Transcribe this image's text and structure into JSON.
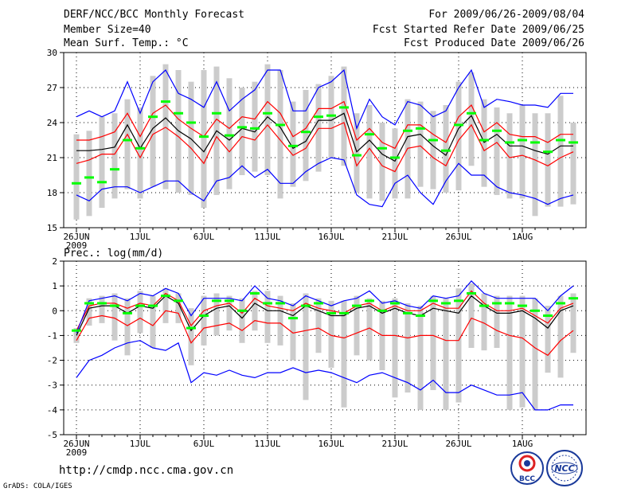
{
  "header": {
    "title": "DERF/NCC/BCC Monthly Forecast",
    "member_size": "Member Size=40",
    "variable": "Mean Surf. Temp.: °C",
    "period": "For 2009/06/26-2009/08/04",
    "started": "Fcst Started Refer Date 2009/06/25",
    "produced": "Fcst Produced Date 2009/06/26"
  },
  "panel2_label": "Prec.: log(mm/d)",
  "footer": {
    "url": "http://cmdp.ncc.cma.gov.cn",
    "credit": "GrADS: COLA/IGES"
  },
  "logos": {
    "bcc": "BCC",
    "ncc": "NCC"
  },
  "colors": {
    "bar": "#cccccc",
    "mean": "#00ff00",
    "median": "#000000",
    "quartile": "#ff0000",
    "extreme": "#0000ff"
  },
  "chart_data": [
    {
      "type": "box-range",
      "title": "Mean Surf. Temp.: °C",
      "x": [
        "06-26",
        "06-27",
        "06-28",
        "06-29",
        "06-30",
        "07-01",
        "07-02",
        "07-03",
        "07-04",
        "07-05",
        "07-06",
        "07-07",
        "07-08",
        "07-09",
        "07-10",
        "07-11",
        "07-12",
        "07-13",
        "07-14",
        "07-15",
        "07-16",
        "07-17",
        "07-18",
        "07-19",
        "07-20",
        "07-21",
        "07-22",
        "07-23",
        "07-24",
        "07-25",
        "07-26",
        "07-27",
        "07-28",
        "07-29",
        "07-30",
        "07-31",
        "08-01",
        "08-02",
        "08-03",
        "08-04"
      ],
      "xticks": [
        "26JUN",
        "1JUL",
        "6JUL",
        "11JUL",
        "16JUL",
        "21JUL",
        "26JUL",
        "1AUG"
      ],
      "xtick_sub": "2009",
      "ylim": [
        15,
        30
      ],
      "yticks": [
        15,
        18,
        21,
        24,
        27,
        30
      ],
      "bar_low": [
        15.7,
        16.0,
        16.7,
        17.5,
        18.3,
        17.5,
        18.5,
        18.3,
        18.0,
        17.8,
        16.7,
        17.8,
        18.3,
        19.5,
        19.8,
        19.5,
        17.5,
        18.5,
        19.0,
        19.8,
        21.0,
        20.3,
        18.0,
        17.5,
        17.3,
        17.5,
        17.5,
        18.5,
        18.3,
        18.0,
        18.2,
        20.3,
        18.5,
        17.8,
        17.5,
        17.5,
        16.0,
        16.8,
        16.8,
        17.0
      ],
      "bar_high": [
        23.0,
        23.3,
        24.5,
        24.8,
        26.0,
        25.3,
        28.0,
        29.0,
        28.5,
        27.5,
        28.5,
        28.8,
        27.8,
        27.0,
        27.5,
        29.0,
        28.5,
        25.8,
        26.8,
        27.3,
        28.0,
        28.8,
        24.8,
        25.5,
        24.0,
        23.5,
        26.0,
        25.8,
        25.0,
        25.5,
        27.5,
        28.3,
        26.0,
        25.3,
        24.8,
        25.5,
        24.8,
        24.8,
        26.3,
        24.0
      ],
      "series": [
        {
          "name": "ensemble mean",
          "style": "tick",
          "values": [
            18.8,
            19.3,
            18.9,
            20.0,
            22.5,
            21.8,
            24.5,
            25.8,
            24.8,
            24.0,
            22.8,
            24.8,
            22.9,
            23.6,
            23.5,
            24.8,
            23.8,
            22.0,
            23.2,
            24.5,
            24.6,
            25.3,
            21.2,
            23.0,
            21.8,
            21.0,
            23.3,
            23.5,
            22.5,
            21.6,
            23.8,
            24.8,
            22.5,
            23.3,
            22.3,
            22.5,
            22.3,
            21.5,
            22.5,
            22.3
          ]
        },
        {
          "name": "median",
          "style": "line",
          "values": [
            21.6,
            21.6,
            21.7,
            21.9,
            23.8,
            21.8,
            23.5,
            24.4,
            23.3,
            22.6,
            21.5,
            23.3,
            22.5,
            23.5,
            23.2,
            24.5,
            23.6,
            21.8,
            22.4,
            24.2,
            24.2,
            24.8,
            21.5,
            22.5,
            21.3,
            20.7,
            22.8,
            23.0,
            22.0,
            21.2,
            23.5,
            24.6,
            22.3,
            23.0,
            22.0,
            22.0,
            21.6,
            21.3,
            22.0,
            22.0
          ]
        },
        {
          "name": "upper quartile",
          "style": "line",
          "values": [
            22.5,
            22.5,
            22.8,
            23.2,
            24.8,
            22.8,
            24.8,
            25.5,
            24.3,
            23.5,
            22.8,
            24.3,
            23.5,
            24.5,
            24.3,
            25.8,
            24.8,
            22.8,
            23.5,
            25.2,
            25.2,
            25.8,
            22.5,
            23.5,
            22.3,
            21.8,
            23.8,
            23.8,
            23.0,
            22.3,
            24.5,
            25.5,
            23.2,
            24.0,
            23.0,
            22.8,
            22.8,
            22.3,
            23.0,
            23.0
          ]
        },
        {
          "name": "lower quartile",
          "style": "line",
          "values": [
            20.5,
            20.8,
            21.3,
            21.3,
            23.0,
            21.0,
            23.0,
            23.6,
            22.8,
            21.8,
            20.5,
            22.8,
            21.5,
            22.8,
            22.5,
            23.8,
            22.5,
            21.2,
            21.8,
            23.5,
            23.5,
            24.0,
            20.3,
            21.8,
            20.3,
            19.8,
            21.8,
            22.0,
            21.0,
            20.3,
            22.5,
            23.8,
            21.6,
            22.3,
            21.0,
            21.2,
            20.8,
            20.3,
            21.0,
            21.5
          ]
        },
        {
          "name": "maximum",
          "style": "line",
          "values": [
            24.5,
            25.0,
            24.5,
            25.0,
            27.5,
            24.8,
            27.5,
            28.5,
            26.5,
            26.0,
            25.3,
            27.5,
            25.0,
            26.0,
            26.8,
            28.5,
            28.5,
            25.0,
            25.0,
            27.0,
            27.5,
            28.5,
            23.5,
            26.0,
            24.5,
            23.8,
            25.8,
            25.5,
            24.5,
            25.0,
            27.0,
            28.5,
            25.3,
            26.0,
            25.8,
            25.5,
            25.5,
            25.3,
            26.5,
            26.5
          ]
        },
        {
          "name": "minimum",
          "style": "line",
          "values": [
            17.8,
            17.3,
            18.3,
            18.5,
            18.5,
            18.0,
            18.5,
            19.0,
            19.0,
            18.0,
            17.3,
            19.0,
            19.3,
            20.3,
            19.3,
            20.0,
            18.8,
            18.8,
            19.8,
            20.5,
            21.0,
            20.8,
            17.8,
            17.0,
            16.8,
            18.8,
            19.5,
            18.0,
            17.0,
            19.0,
            20.5,
            19.5,
            19.5,
            18.5,
            18.0,
            17.8,
            17.5,
            17.0,
            17.5,
            17.8
          ]
        }
      ]
    },
    {
      "type": "box-range",
      "title": "Prec.: log(mm/d)",
      "x": [
        "06-26",
        "06-27",
        "06-28",
        "06-29",
        "06-30",
        "07-01",
        "07-02",
        "07-03",
        "07-04",
        "07-05",
        "07-06",
        "07-07",
        "07-08",
        "07-09",
        "07-10",
        "07-11",
        "07-12",
        "07-13",
        "07-14",
        "07-15",
        "07-16",
        "07-17",
        "07-18",
        "07-19",
        "07-20",
        "07-21",
        "07-22",
        "07-23",
        "07-24",
        "07-25",
        "07-26",
        "07-27",
        "07-28",
        "07-29",
        "07-30",
        "07-31",
        "08-01",
        "08-02",
        "08-03",
        "08-04"
      ],
      "xticks": [
        "26JUN",
        "1JUL",
        "6JUL",
        "11JUL",
        "16JUL",
        "21JUL",
        "26JUL",
        "1AUG"
      ],
      "xtick_sub": "2009",
      "ylim": [
        -5,
        2
      ],
      "yticks": [
        -5,
        -4,
        -3,
        -2,
        -1,
        0,
        1,
        2
      ],
      "bar_low": [
        -1.3,
        -0.6,
        -0.5,
        -1.2,
        -1.8,
        -0.9,
        -1.5,
        -0.5,
        -0.5,
        -2.2,
        -1.4,
        -1.0,
        -0.8,
        -1.3,
        -0.8,
        -1.3,
        -1.4,
        -2.0,
        -3.6,
        -1.7,
        -2.3,
        -3.9,
        -1.8,
        -2.0,
        -2.4,
        -3.5,
        -3.3,
        -4.0,
        -3.2,
        -4.0,
        -3.7,
        -1.5,
        -1.6,
        -1.5,
        -4.0,
        -3.9,
        -4.0,
        -2.5,
        -2.7,
        -1.7
      ],
      "bar_high": [
        -0.7,
        0.5,
        0.6,
        0.7,
        0.5,
        0.8,
        0.6,
        0.9,
        0.7,
        0.1,
        0.6,
        0.7,
        0.6,
        0.5,
        0.8,
        0.8,
        0.6,
        0.3,
        0.7,
        0.5,
        0.4,
        0.4,
        0.6,
        0.5,
        0.4,
        0.5,
        0.3,
        0.2,
        0.6,
        0.5,
        0.9,
        1.1,
        0.7,
        0.6,
        0.6,
        0.6,
        0.5,
        0.2,
        0.6,
        0.7
      ],
      "series": [
        {
          "name": "ensemble mean",
          "style": "tick",
          "values": [
            -0.8,
            0.3,
            0.3,
            0.2,
            -0.1,
            0.2,
            0.2,
            0.6,
            0.4,
            -0.7,
            -0.2,
            0.4,
            0.4,
            0.0,
            0.7,
            0.3,
            0.3,
            -0.3,
            0.2,
            0.3,
            -0.1,
            -0.1,
            0.2,
            0.4,
            0.0,
            0.3,
            -0.1,
            -0.2,
            0.4,
            0.3,
            0.4,
            0.7,
            0.2,
            0.3,
            0.3,
            0.2,
            0.0,
            -0.2,
            0.3,
            0.5
          ]
        },
        {
          "name": "median",
          "style": "line",
          "values": [
            -1.0,
            0.1,
            0.2,
            0.2,
            -0.1,
            0.2,
            0.1,
            0.6,
            0.3,
            -0.8,
            -0.2,
            0.1,
            0.2,
            -0.3,
            0.3,
            0.0,
            0.0,
            -0.2,
            0.2,
            0.0,
            -0.2,
            -0.2,
            0.1,
            0.2,
            -0.1,
            0.1,
            -0.1,
            -0.2,
            0.1,
            0.0,
            -0.1,
            0.6,
            0.2,
            -0.1,
            -0.1,
            0.0,
            -0.3,
            -0.7,
            0.0,
            0.2
          ]
        },
        {
          "name": "upper quartile",
          "style": "line",
          "values": [
            -0.8,
            0.2,
            0.3,
            0.3,
            0.1,
            0.3,
            0.2,
            0.7,
            0.4,
            -0.6,
            0.0,
            0.2,
            0.3,
            -0.1,
            0.5,
            0.2,
            0.1,
            0.0,
            0.3,
            0.1,
            0.0,
            -0.1,
            0.2,
            0.3,
            0.0,
            0.2,
            0.0,
            0.0,
            0.3,
            0.1,
            0.1,
            0.8,
            0.3,
            0.0,
            0.0,
            0.1,
            -0.2,
            -0.5,
            0.1,
            0.3
          ]
        },
        {
          "name": "lower quartile",
          "style": "line",
          "values": [
            -1.2,
            -0.3,
            -0.2,
            -0.3,
            -0.6,
            -0.3,
            -0.6,
            0.0,
            -0.1,
            -1.3,
            -0.7,
            -0.6,
            -0.5,
            -0.8,
            -0.4,
            -0.5,
            -0.5,
            -0.9,
            -0.8,
            -0.7,
            -1.0,
            -1.1,
            -0.9,
            -0.7,
            -1.0,
            -1.0,
            -1.1,
            -1.0,
            -1.0,
            -1.2,
            -1.2,
            -0.3,
            -0.5,
            -0.8,
            -1.0,
            -1.1,
            -1.5,
            -1.8,
            -1.2,
            -0.8
          ]
        },
        {
          "name": "maximum",
          "style": "line",
          "values": [
            -0.9,
            0.4,
            0.5,
            0.6,
            0.4,
            0.7,
            0.6,
            0.9,
            0.7,
            -0.2,
            0.5,
            0.5,
            0.5,
            0.4,
            1.0,
            0.5,
            0.4,
            0.2,
            0.6,
            0.4,
            0.2,
            0.4,
            0.5,
            0.8,
            0.3,
            0.4,
            0.2,
            0.1,
            0.6,
            0.5,
            0.6,
            1.2,
            0.7,
            0.5,
            0.5,
            0.5,
            0.5,
            0.0,
            0.6,
            1.0
          ]
        },
        {
          "name": "minimum",
          "style": "line",
          "values": [
            -2.7,
            -2.0,
            -1.8,
            -1.5,
            -1.3,
            -1.2,
            -1.5,
            -1.6,
            -1.3,
            -2.9,
            -2.5,
            -2.6,
            -2.4,
            -2.6,
            -2.7,
            -2.5,
            -2.5,
            -2.3,
            -2.5,
            -2.4,
            -2.5,
            -2.7,
            -2.9,
            -2.6,
            -2.5,
            -2.7,
            -2.9,
            -3.2,
            -2.8,
            -3.3,
            -3.3,
            -3.0,
            -3.2,
            -3.4,
            -3.4,
            -3.3,
            -4.0,
            -4.0,
            -3.8,
            -3.8
          ]
        }
      ]
    }
  ]
}
